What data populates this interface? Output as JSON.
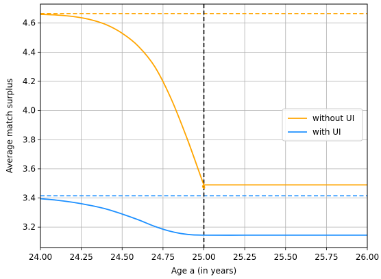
{
  "chart_data": {
    "type": "line",
    "title": "",
    "xlabel": "Age a (in years)",
    "ylabel": "Average match surplus",
    "xlim": [
      24.0,
      26.0
    ],
    "ylim": [
      3.06,
      4.73
    ],
    "grid": true,
    "legend_position": "center-right",
    "x_ticks": [
      24.0,
      24.25,
      24.5,
      24.75,
      25.0,
      25.25,
      25.5,
      25.75,
      26.0
    ],
    "x_tick_labels": [
      "24.00",
      "24.25",
      "24.50",
      "24.75",
      "25.00",
      "25.25",
      "25.50",
      "25.75",
      "26.00"
    ],
    "y_ticks": [
      3.2,
      3.4,
      3.6,
      3.8,
      4.0,
      4.2,
      4.4,
      4.6
    ],
    "y_tick_labels": [
      "3.2",
      "3.4",
      "3.6",
      "3.8",
      "4.0",
      "4.2",
      "4.4",
      "4.6"
    ],
    "series": [
      {
        "name": "without UI",
        "color": "#ffa500",
        "style": "solid",
        "x": [
          24.0,
          24.1,
          24.2,
          24.3,
          24.4,
          24.5,
          24.6,
          24.7,
          24.8,
          24.9,
          25.0,
          25.01,
          25.25,
          25.5,
          25.75,
          26.0
        ],
        "y": [
          4.66,
          4.655,
          4.645,
          4.625,
          4.59,
          4.53,
          4.44,
          4.3,
          4.08,
          3.8,
          3.49,
          3.49,
          3.49,
          3.49,
          3.49,
          3.49
        ]
      },
      {
        "name": "with UI",
        "color": "#1e90ff",
        "style": "solid",
        "x": [
          24.0,
          24.1,
          24.2,
          24.3,
          24.4,
          24.5,
          24.6,
          24.7,
          24.8,
          24.9,
          25.0,
          25.25,
          25.5,
          25.75,
          26.0
        ],
        "y": [
          3.395,
          3.385,
          3.37,
          3.35,
          3.325,
          3.29,
          3.25,
          3.205,
          3.17,
          3.15,
          3.145,
          3.145,
          3.145,
          3.145,
          3.145
        ]
      }
    ],
    "reference_lines": [
      {
        "orientation": "horizontal",
        "value": 4.665,
        "color": "#ffa500",
        "style": "dashed"
      },
      {
        "orientation": "horizontal",
        "value": 3.415,
        "color": "#1e90ff",
        "style": "dashed"
      },
      {
        "orientation": "vertical",
        "value": 25.0,
        "color": "#000000",
        "style": "dashed"
      }
    ]
  }
}
